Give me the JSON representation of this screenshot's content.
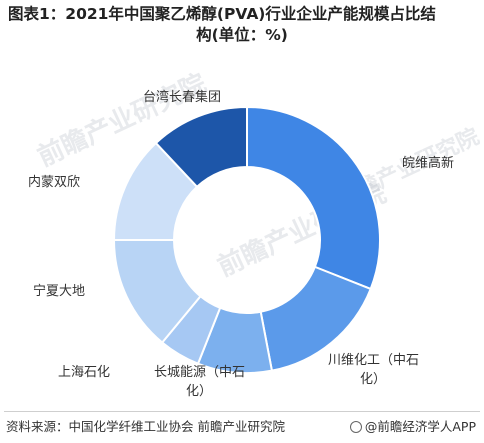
{
  "title": {
    "line1": "图表1：2021年中国聚乙烯醇(PVA)行业企业产能规模占比结",
    "line2": "构(单位：%)"
  },
  "watermark": "前瞻产业研究院",
  "chart_data": {
    "type": "pie",
    "donut": true,
    "categories": [
      "皖维高新",
      "川维化工（中石化）",
      "长城能源（中石化）",
      "上海石化",
      "宁夏大地",
      "内蒙双欣",
      "台湾长春集团"
    ],
    "values": [
      31,
      16,
      9,
      5,
      14,
      13,
      12
    ],
    "colors": [
      "#3f86e5",
      "#5b9aea",
      "#7cb0ee",
      "#a6c8f3",
      "#b8d4f5",
      "#cde0f8",
      "#1d56a9"
    ]
  },
  "labels": {
    "wanwei": "皖维高新",
    "chuanwei_1": "川维化工（中石",
    "chuanwei_2": "化）",
    "changcheng_1": "长城能源（中石",
    "changcheng_2": "化）",
    "shanghai": "上海石化",
    "ningxia": "宁夏大地",
    "neimeng": "内蒙双欣",
    "taiwan": "台湾长春集团"
  },
  "footer": {
    "source": "资料来源：中国化学纤维工业协会 前瞻产业研究院",
    "brand": "@前瞻经济学人APP"
  }
}
